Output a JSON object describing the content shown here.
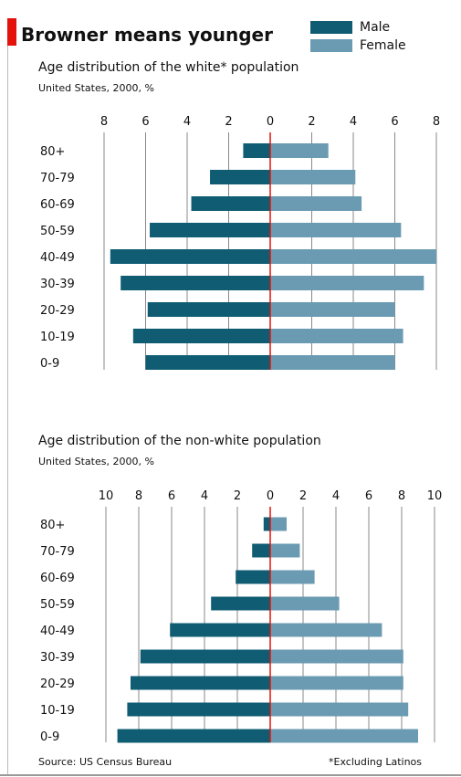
{
  "title": "Browner means younger",
  "legend": {
    "male_label": "Male",
    "female_label": "Female"
  },
  "colors": {
    "male": "#0f5c73",
    "female": "#6a9bb2",
    "zero_line": "#e3120b",
    "grid": "#888888"
  },
  "chart1": {
    "subtitle": "Age distribution of the white* population",
    "note": "United States, 2000, %"
  },
  "chart2": {
    "subtitle": "Age distribution of the non-white population",
    "note": "United States, 2000, %"
  },
  "footer": {
    "source": "Source: US Census Bureau",
    "footnote": "*Excluding Latinos"
  },
  "chart_data": [
    {
      "type": "bar",
      "orientation": "horizontal-pyramid",
      "title": "Age distribution of the white* population",
      "subtitle": "United States, 2000, %",
      "categories": [
        "80+",
        "70-79",
        "60-69",
        "50-59",
        "40-49",
        "30-39",
        "20-29",
        "10-19",
        "0-9"
      ],
      "x_ticks": [
        "8",
        "6",
        "4",
        "2",
        "0",
        "2",
        "4",
        "6",
        "8"
      ],
      "xlim": [
        -8,
        8
      ],
      "series": [
        {
          "name": "Male",
          "values": [
            1.3,
            2.9,
            3.8,
            5.8,
            7.7,
            7.2,
            5.9,
            6.6,
            6.0
          ]
        },
        {
          "name": "Female",
          "values": [
            2.8,
            4.1,
            4.4,
            6.3,
            8.0,
            7.4,
            6.0,
            6.4,
            6.0
          ]
        }
      ]
    },
    {
      "type": "bar",
      "orientation": "horizontal-pyramid",
      "title": "Age distribution of the non-white population",
      "subtitle": "United States, 2000, %",
      "categories": [
        "80+",
        "70-79",
        "60-69",
        "50-59",
        "40-49",
        "30-39",
        "20-29",
        "10-19",
        "0-9"
      ],
      "x_ticks": [
        "10",
        "8",
        "6",
        "4",
        "2",
        "0",
        "2",
        "4",
        "6",
        "8",
        "10"
      ],
      "xlim": [
        -10,
        10
      ],
      "series": [
        {
          "name": "Male",
          "values": [
            0.4,
            1.1,
            2.1,
            3.6,
            6.1,
            7.9,
            8.5,
            8.7,
            9.3
          ]
        },
        {
          "name": "Female",
          "values": [
            1.0,
            1.8,
            2.7,
            4.2,
            6.8,
            8.1,
            8.1,
            8.4,
            9.0
          ]
        }
      ]
    }
  ]
}
